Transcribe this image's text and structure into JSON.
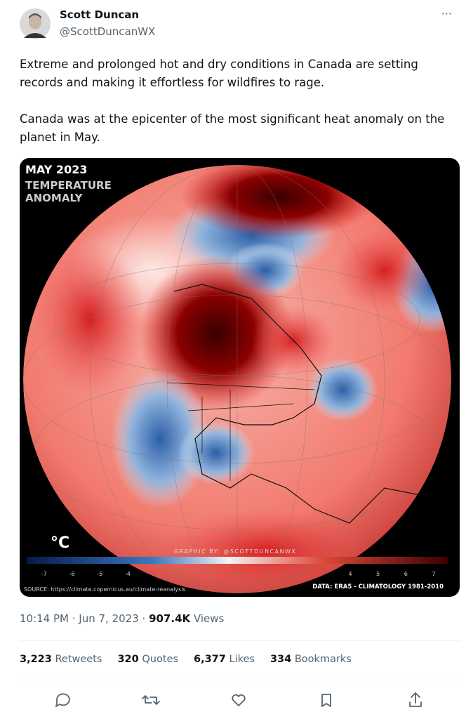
{
  "header": {
    "name": "Scott Duncan",
    "handle": "@ScottDuncanWX",
    "menu": "···"
  },
  "body": {
    "paragraphs": [
      "Extreme and prolonged hot and dry conditions in Canada are setting records and making it effortless for wildfires to rage.",
      "Canada was at the epicenter of the most significant heat anomaly on the planet in May."
    ]
  },
  "image": {
    "title": "MAY 2023",
    "subtitle": "TEMPERATURE ANOMALY",
    "unit": "°C",
    "credit": "GRAPHIC BY: @SCOTTDUNCANWX",
    "source": "SOURCE: https://climate.copernicus.eu/climate-reanalysis",
    "data_note": "DATA: ERA5 - CLIMATOLOGY 1981-2010",
    "colorbar": {
      "ticks": [
        -7,
        -6,
        -5,
        -4,
        4,
        5,
        6,
        7
      ]
    }
  },
  "meta": {
    "time": "10:14 PM · Jun 7, 2023 · ",
    "views": "907.4K",
    "views_label": " Views"
  },
  "stats": [
    {
      "count": "3,223",
      "label": "Retweets"
    },
    {
      "count": "320",
      "label": "Quotes"
    },
    {
      "count": "6,377",
      "label": "Likes"
    },
    {
      "count": "334",
      "label": "Bookmarks"
    }
  ]
}
